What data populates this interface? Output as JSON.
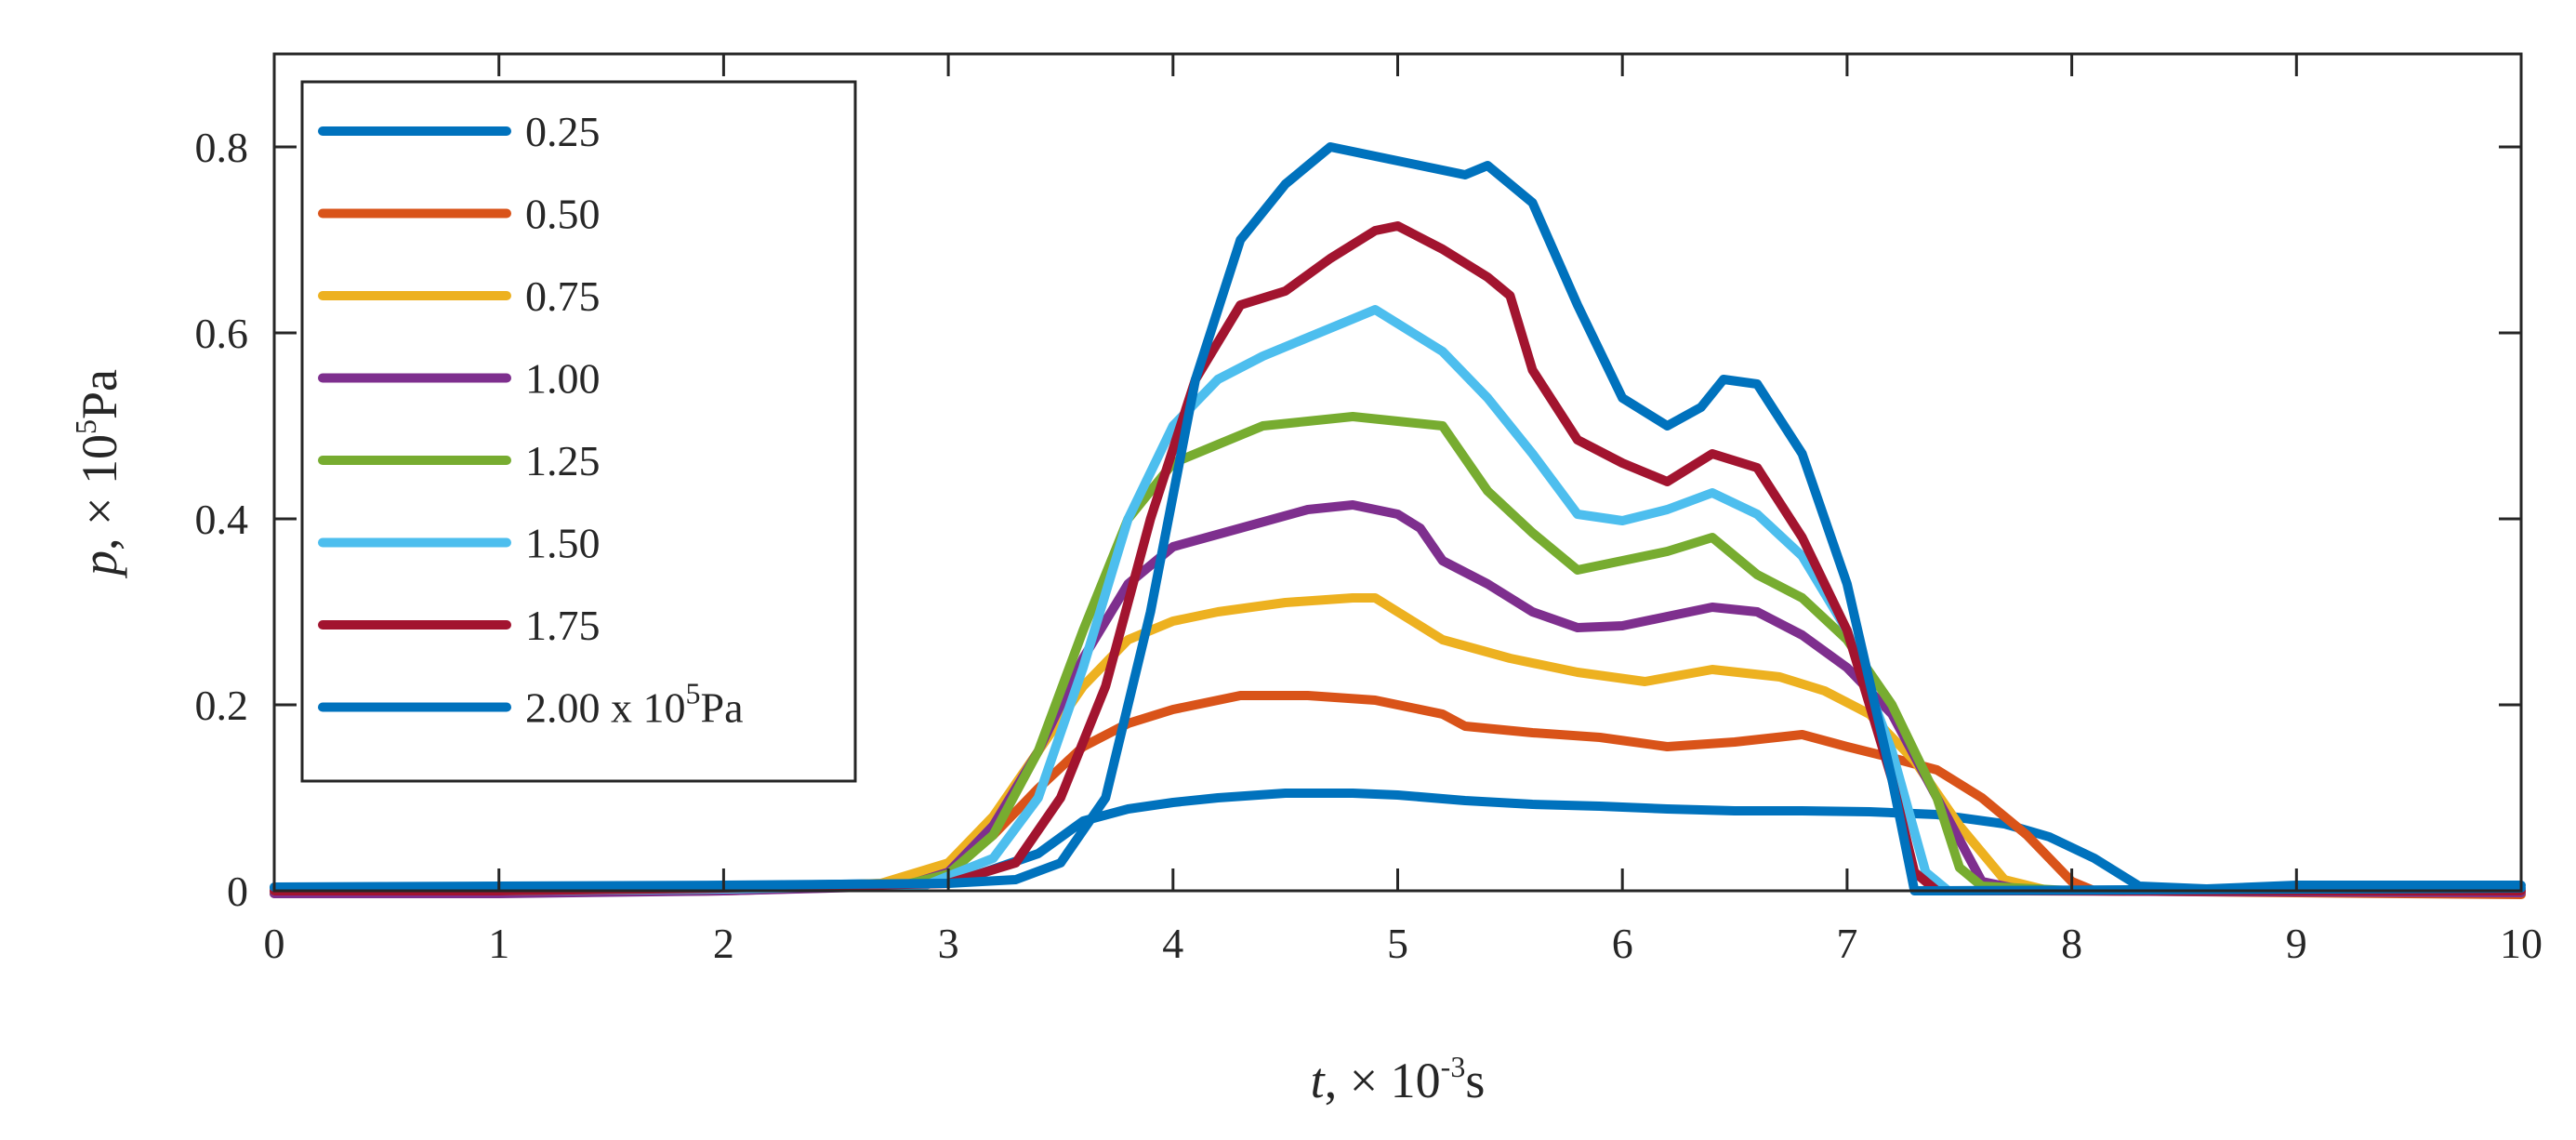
{
  "chart_data": {
    "type": "line",
    "xlabel_prefix": "t",
    "xlabel_rest": ", × 10",
    "xlabel_exp": "-3",
    "xlabel_unit": "s",
    "ylabel_prefix": "p",
    "ylabel_rest": ", × 10",
    "ylabel_exp": "5",
    "ylabel_unit": "Pa",
    "xlim": [
      0,
      10
    ],
    "ylim": [
      0,
      0.9
    ],
    "xticks": [
      0,
      1,
      2,
      3,
      4,
      5,
      6,
      7,
      8,
      9,
      10
    ],
    "xtick_labels": [
      "0",
      "1",
      "2",
      "3",
      "4",
      "5",
      "6",
      "7",
      "8",
      "9",
      "10"
    ],
    "yticks": [
      0,
      0.2,
      0.4,
      0.6,
      0.8
    ],
    "ytick_labels": [
      "0",
      "0.2",
      "0.4",
      "0.6",
      "0.8"
    ],
    "legend_position": "top-left",
    "legend_suffix_text": " x 10",
    "legend_suffix_exp": "5",
    "legend_suffix_unit": "Pa",
    "series": [
      {
        "name": "0.25",
        "color": "#0072BD",
        "points": [
          [
            0,
            0.003
          ],
          [
            1,
            0.004
          ],
          [
            2,
            0.005
          ],
          [
            2.8,
            0.008
          ],
          [
            3.1,
            0.015
          ],
          [
            3.4,
            0.04
          ],
          [
            3.6,
            0.075
          ],
          [
            3.8,
            0.088
          ],
          [
            4.0,
            0.095
          ],
          [
            4.2,
            0.1
          ],
          [
            4.5,
            0.105
          ],
          [
            4.8,
            0.105
          ],
          [
            5.0,
            0.103
          ],
          [
            5.3,
            0.097
          ],
          [
            5.6,
            0.093
          ],
          [
            5.9,
            0.091
          ],
          [
            6.2,
            0.088
          ],
          [
            6.5,
            0.086
          ],
          [
            6.8,
            0.086
          ],
          [
            7.1,
            0.085
          ],
          [
            7.4,
            0.082
          ],
          [
            7.7,
            0.072
          ],
          [
            7.9,
            0.058
          ],
          [
            8.1,
            0.035
          ],
          [
            8.3,
            0.005
          ],
          [
            8.6,
            0.002
          ],
          [
            9,
            0.006
          ],
          [
            9.5,
            0.006
          ],
          [
            10,
            0.006
          ]
        ]
      },
      {
        "name": "0.50",
        "color": "#D95319",
        "points": [
          [
            0,
            -0.003
          ],
          [
            1,
            -0.002
          ],
          [
            2,
            0.0
          ],
          [
            2.7,
            0.005
          ],
          [
            3.0,
            0.02
          ],
          [
            3.2,
            0.06
          ],
          [
            3.4,
            0.11
          ],
          [
            3.6,
            0.155
          ],
          [
            3.8,
            0.18
          ],
          [
            4.0,
            0.195
          ],
          [
            4.3,
            0.21
          ],
          [
            4.6,
            0.21
          ],
          [
            4.9,
            0.205
          ],
          [
            5.2,
            0.19
          ],
          [
            5.3,
            0.177
          ],
          [
            5.6,
            0.17
          ],
          [
            5.9,
            0.165
          ],
          [
            6.2,
            0.155
          ],
          [
            6.5,
            0.16
          ],
          [
            6.8,
            0.168
          ],
          [
            7.0,
            0.155
          ],
          [
            7.2,
            0.143
          ],
          [
            7.4,
            0.13
          ],
          [
            7.6,
            0.1
          ],
          [
            7.8,
            0.06
          ],
          [
            8.0,
            0.01
          ],
          [
            8.1,
            0.0
          ],
          [
            9,
            -0.002
          ],
          [
            10,
            -0.004
          ]
        ]
      },
      {
        "name": "0.75",
        "color": "#EDB120",
        "points": [
          [
            0,
            -0.002
          ],
          [
            1,
            -0.001
          ],
          [
            2,
            0.001
          ],
          [
            2.7,
            0.008
          ],
          [
            3.0,
            0.03
          ],
          [
            3.2,
            0.08
          ],
          [
            3.4,
            0.15
          ],
          [
            3.6,
            0.22
          ],
          [
            3.8,
            0.27
          ],
          [
            4.0,
            0.29
          ],
          [
            4.2,
            0.3
          ],
          [
            4.5,
            0.31
          ],
          [
            4.8,
            0.315
          ],
          [
            4.9,
            0.315
          ],
          [
            5.0,
            0.3
          ],
          [
            5.2,
            0.27
          ],
          [
            5.5,
            0.25
          ],
          [
            5.8,
            0.235
          ],
          [
            6.1,
            0.225
          ],
          [
            6.4,
            0.238
          ],
          [
            6.7,
            0.23
          ],
          [
            6.9,
            0.215
          ],
          [
            7.1,
            0.19
          ],
          [
            7.3,
            0.14
          ],
          [
            7.5,
            0.07
          ],
          [
            7.7,
            0.012
          ],
          [
            7.9,
            0.0
          ],
          [
            10,
            0.0
          ]
        ]
      },
      {
        "name": "1.00",
        "color": "#7E2F8E",
        "points": [
          [
            0,
            -0.003
          ],
          [
            1,
            -0.003
          ],
          [
            2,
            0.0
          ],
          [
            2.8,
            0.005
          ],
          [
            3.0,
            0.02
          ],
          [
            3.2,
            0.07
          ],
          [
            3.4,
            0.15
          ],
          [
            3.6,
            0.25
          ],
          [
            3.8,
            0.33
          ],
          [
            4.0,
            0.37
          ],
          [
            4.3,
            0.39
          ],
          [
            4.6,
            0.41
          ],
          [
            4.8,
            0.415
          ],
          [
            5.0,
            0.405
          ],
          [
            5.1,
            0.39
          ],
          [
            5.2,
            0.355
          ],
          [
            5.4,
            0.33
          ],
          [
            5.6,
            0.3
          ],
          [
            5.8,
            0.283
          ],
          [
            6.0,
            0.285
          ],
          [
            6.2,
            0.295
          ],
          [
            6.4,
            0.305
          ],
          [
            6.6,
            0.3
          ],
          [
            6.8,
            0.275
          ],
          [
            7.0,
            0.24
          ],
          [
            7.2,
            0.19
          ],
          [
            7.4,
            0.1
          ],
          [
            7.6,
            0.01
          ],
          [
            7.8,
            0.0
          ],
          [
            10,
            -0.002
          ]
        ]
      },
      {
        "name": "1.25",
        "color": "#77AC30",
        "points": [
          [
            0,
            0.0
          ],
          [
            1,
            0.0
          ],
          [
            2,
            0.002
          ],
          [
            2.8,
            0.006
          ],
          [
            3.0,
            0.018
          ],
          [
            3.2,
            0.06
          ],
          [
            3.4,
            0.15
          ],
          [
            3.6,
            0.28
          ],
          [
            3.8,
            0.4
          ],
          [
            4.0,
            0.46
          ],
          [
            4.2,
            0.48
          ],
          [
            4.4,
            0.5
          ],
          [
            4.6,
            0.505
          ],
          [
            4.8,
            0.51
          ],
          [
            5.0,
            0.505
          ],
          [
            5.2,
            0.5
          ],
          [
            5.4,
            0.43
          ],
          [
            5.6,
            0.385
          ],
          [
            5.8,
            0.345
          ],
          [
            6.0,
            0.355
          ],
          [
            6.2,
            0.365
          ],
          [
            6.4,
            0.38
          ],
          [
            6.6,
            0.34
          ],
          [
            6.8,
            0.315
          ],
          [
            7.0,
            0.27
          ],
          [
            7.2,
            0.2
          ],
          [
            7.4,
            0.1
          ],
          [
            7.5,
            0.025
          ],
          [
            7.6,
            0.005
          ],
          [
            8,
            0.0
          ],
          [
            10,
            0.0
          ]
        ]
      },
      {
        "name": "1.50",
        "color": "#4DBEEE",
        "points": [
          [
            0,
            0.0
          ],
          [
            1,
            0.0
          ],
          [
            2,
            0.002
          ],
          [
            2.9,
            0.006
          ],
          [
            3.2,
            0.035
          ],
          [
            3.4,
            0.1
          ],
          [
            3.6,
            0.24
          ],
          [
            3.8,
            0.4
          ],
          [
            4.0,
            0.5
          ],
          [
            4.2,
            0.55
          ],
          [
            4.4,
            0.575
          ],
          [
            4.6,
            0.595
          ],
          [
            4.8,
            0.615
          ],
          [
            4.9,
            0.625
          ],
          [
            5.0,
            0.61
          ],
          [
            5.2,
            0.58
          ],
          [
            5.4,
            0.53
          ],
          [
            5.6,
            0.47
          ],
          [
            5.8,
            0.405
          ],
          [
            6.0,
            0.398
          ],
          [
            6.2,
            0.41
          ],
          [
            6.4,
            0.428
          ],
          [
            6.6,
            0.405
          ],
          [
            6.8,
            0.36
          ],
          [
            7.0,
            0.28
          ],
          [
            7.2,
            0.15
          ],
          [
            7.35,
            0.02
          ],
          [
            7.45,
            0.0
          ],
          [
            10,
            0.0
          ]
        ]
      },
      {
        "name": "1.75",
        "color": "#A2142F",
        "points": [
          [
            0,
            0.0
          ],
          [
            1,
            0.0
          ],
          [
            2,
            0.003
          ],
          [
            3.0,
            0.008
          ],
          [
            3.3,
            0.03
          ],
          [
            3.5,
            0.1
          ],
          [
            3.7,
            0.22
          ],
          [
            3.9,
            0.4
          ],
          [
            4.1,
            0.55
          ],
          [
            4.3,
            0.63
          ],
          [
            4.5,
            0.645
          ],
          [
            4.7,
            0.68
          ],
          [
            4.9,
            0.71
          ],
          [
            5.0,
            0.715
          ],
          [
            5.2,
            0.69
          ],
          [
            5.4,
            0.66
          ],
          [
            5.5,
            0.64
          ],
          [
            5.6,
            0.56
          ],
          [
            5.8,
            0.485
          ],
          [
            6.0,
            0.46
          ],
          [
            6.2,
            0.44
          ],
          [
            6.4,
            0.47
          ],
          [
            6.6,
            0.455
          ],
          [
            6.8,
            0.38
          ],
          [
            7.0,
            0.28
          ],
          [
            7.2,
            0.12
          ],
          [
            7.3,
            0.02
          ],
          [
            7.4,
            0.0
          ],
          [
            10,
            0.0
          ]
        ]
      },
      {
        "name": "2.00",
        "color": "#0072BD",
        "points": [
          [
            0,
            0.004
          ],
          [
            1,
            0.005
          ],
          [
            2,
            0.006
          ],
          [
            3,
            0.008
          ],
          [
            3.3,
            0.012
          ],
          [
            3.5,
            0.03
          ],
          [
            3.7,
            0.1
          ],
          [
            3.9,
            0.3
          ],
          [
            4.1,
            0.55
          ],
          [
            4.3,
            0.7
          ],
          [
            4.5,
            0.76
          ],
          [
            4.7,
            0.8
          ],
          [
            4.9,
            0.79
          ],
          [
            5.1,
            0.78
          ],
          [
            5.3,
            0.77
          ],
          [
            5.4,
            0.78
          ],
          [
            5.6,
            0.74
          ],
          [
            5.8,
            0.63
          ],
          [
            6.0,
            0.53
          ],
          [
            6.2,
            0.5
          ],
          [
            6.35,
            0.52
          ],
          [
            6.45,
            0.55
          ],
          [
            6.6,
            0.545
          ],
          [
            6.8,
            0.47
          ],
          [
            7.0,
            0.33
          ],
          [
            7.2,
            0.12
          ],
          [
            7.3,
            0.0
          ],
          [
            7.4,
            0.0
          ],
          [
            10,
            0.003
          ]
        ]
      }
    ]
  }
}
